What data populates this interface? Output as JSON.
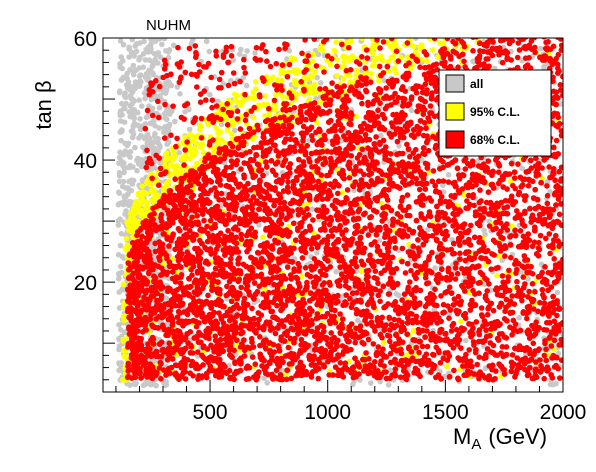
{
  "chart_data": {
    "type": "scatter",
    "title": "NUHM",
    "xlabel_main": "M",
    "xlabel_sub": "A",
    "xlabel_unit": "(GeV)",
    "ylabel": "tan β",
    "xlim": [
      45,
      2000
    ],
    "ylim": [
      2,
      60
    ],
    "x_ticks": [
      500,
      1000,
      1500,
      2000
    ],
    "y_ticks": [
      20,
      40,
      60
    ],
    "grid": false,
    "legend_position": "top-right",
    "series": [
      {
        "name": "all",
        "color": "#c8c8c8",
        "region": {
          "x_min": 110,
          "x_max": 2000,
          "tanb_min": 3,
          "tanb_max": 60
        }
      },
      {
        "name": "95% C.L.",
        "color": "#ffff00",
        "region": {
          "x_min": 130,
          "x_max": 2000,
          "tanb_min": 4,
          "boundary": "tanb_max ≈ 25 + 35·((M_A-130)/870)^0.5, capped at 60"
        }
      },
      {
        "name": "68% C.L.",
        "color": "#ff0000",
        "region": {
          "x_min": 150,
          "x_max": 2000,
          "tanb_min": 4,
          "boundary": "tanb_max ≈ 22 + 37·((M_A-150)/1350)^0.5, capped at 60"
        }
      }
    ]
  }
}
